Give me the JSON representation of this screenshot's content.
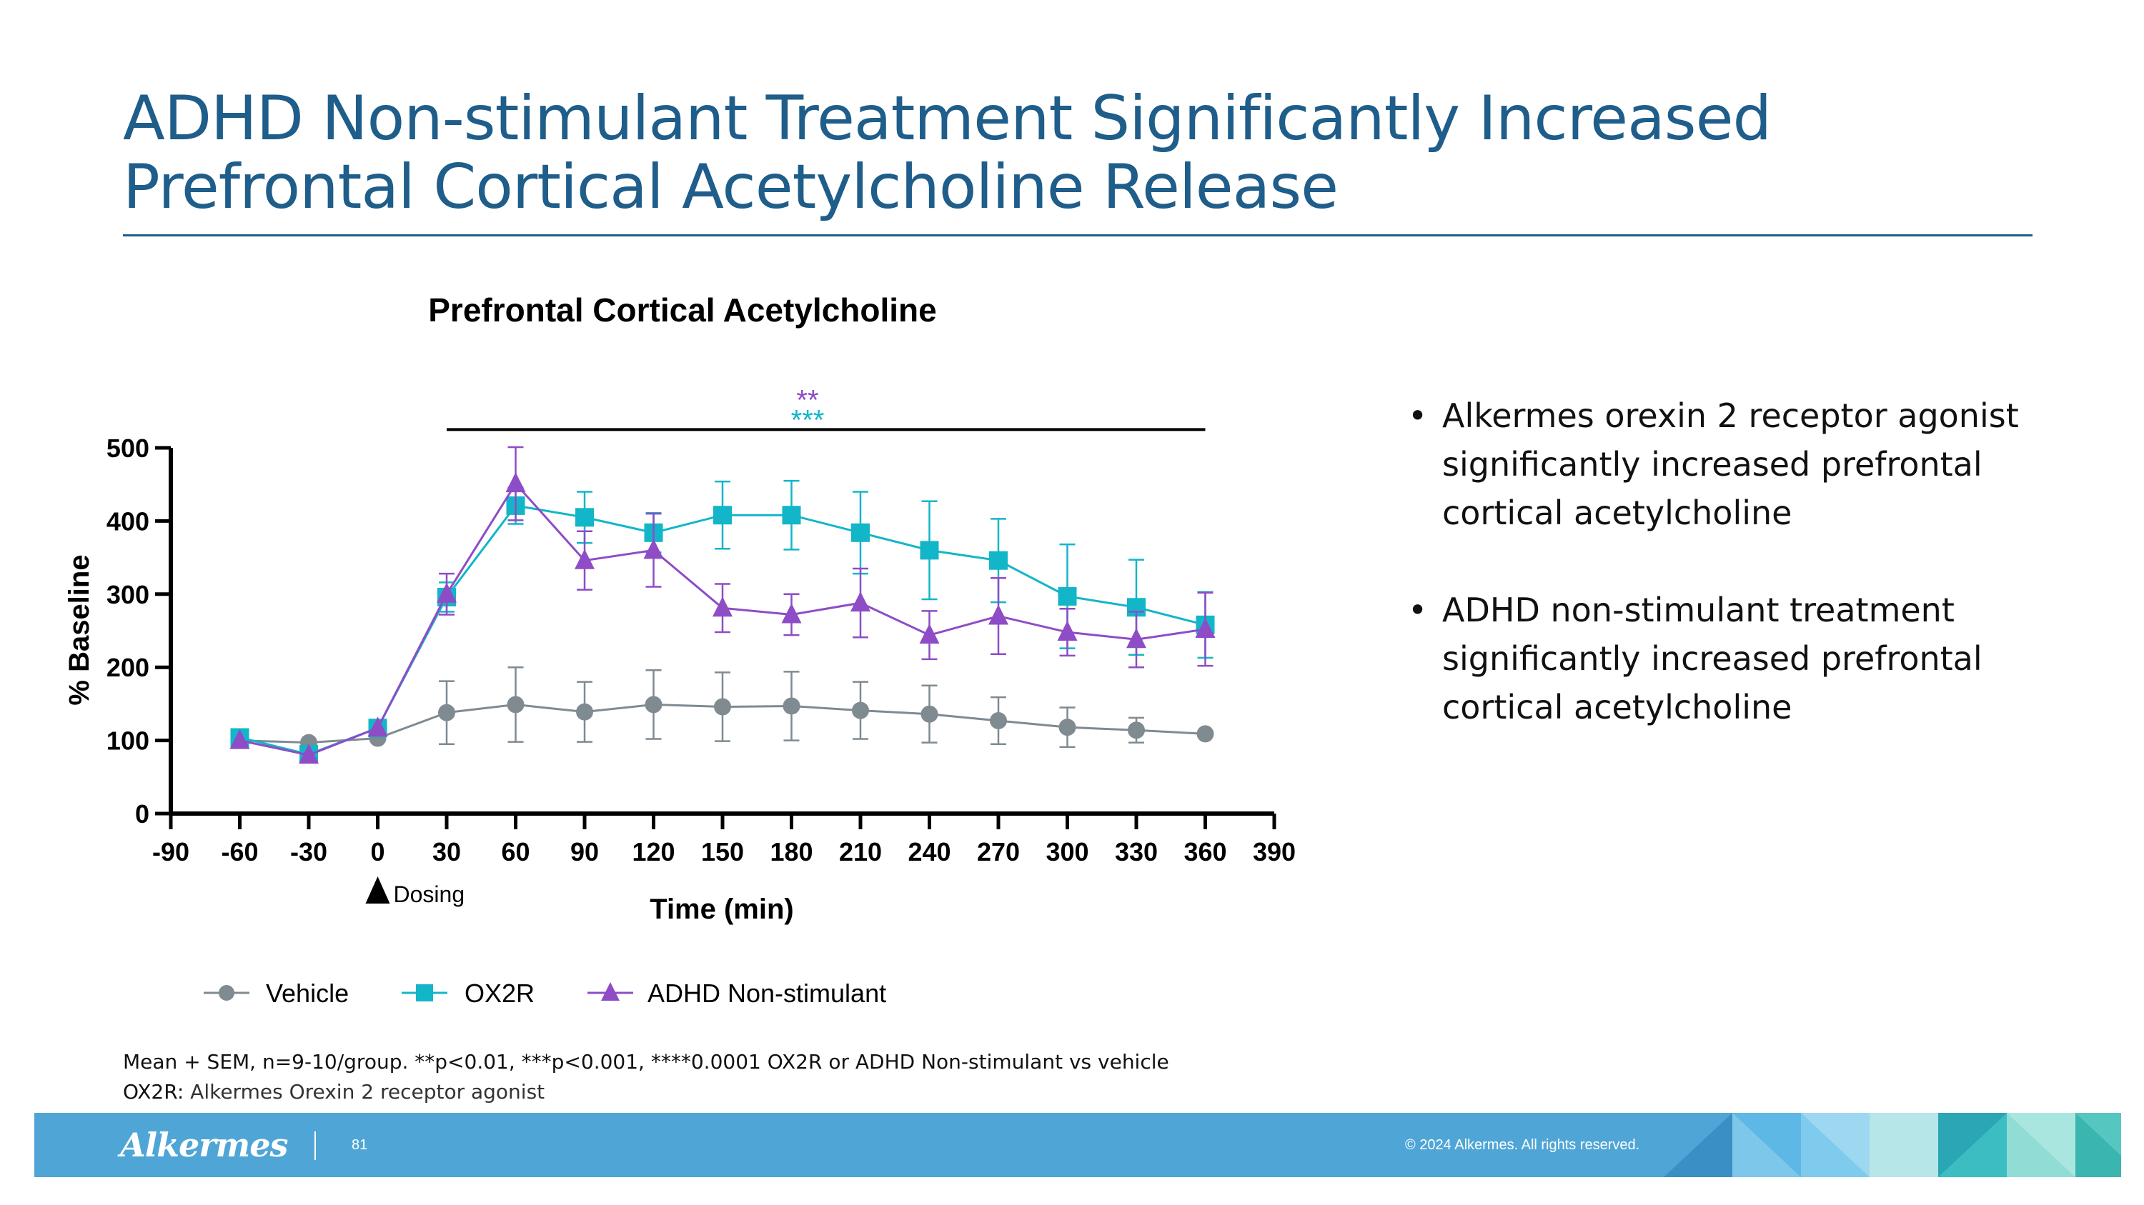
{
  "slide": {
    "title_line1": "ADHD Non-stimulant Treatment Significantly Increased",
    "title_line2": "Prefrontal Cortical Acetylcholine Release"
  },
  "bullets": [
    "Alkermes orexin 2 receptor agonist significantly increased prefrontal cortical acetylcholine",
    "ADHD non-stimulant treatment significantly increased prefrontal cortical acetylcholine"
  ],
  "footnote": {
    "line1": "Mean + SEM, n=9-10/group. **p<0.01, ***p<0.001, ****0.0001 OX2R or ADHD Non-stimulant vs vehicle",
    "line2_label": "OX2R:",
    "line2_text": " Alkermes Orexin 2 receptor agonist"
  },
  "footer": {
    "logo_text": "Alkermes",
    "page_number": "81",
    "copyright": "© 2024 Alkermes. All rights reserved."
  },
  "colors": {
    "title": "#1f5d8a",
    "vehicle": "#7f8a91",
    "ox2r": "#12b6c8",
    "adhd": "#8e4cc6",
    "footer": "#4fa6d6"
  },
  "chart_data": {
    "type": "line",
    "title": "Prefrontal Cortical Acetylcholine",
    "xlabel": "Time (min)",
    "ylabel": "% Baseline",
    "xlim": [
      -90,
      390
    ],
    "ylim": [
      0,
      500
    ],
    "xticks": [
      -90,
      -60,
      -30,
      0,
      30,
      60,
      90,
      120,
      150,
      180,
      210,
      240,
      270,
      300,
      330,
      360,
      390
    ],
    "yticks": [
      0,
      100,
      200,
      300,
      400,
      500
    ],
    "dosing_label": "Dosing",
    "dosing_x": 0,
    "significance": {
      "from_x": 30,
      "to_x": 360,
      "y": 525,
      "adhd_marker": "**",
      "ox2r_marker": "***"
    },
    "legend_position": "bottom",
    "series": [
      {
        "name": "Vehicle",
        "marker": "circle",
        "x": [
          -60,
          -30,
          0,
          30,
          60,
          90,
          120,
          150,
          180,
          210,
          240,
          270,
          300,
          330,
          360
        ],
        "values": [
          100,
          97,
          103,
          138,
          149,
          139,
          149,
          146,
          147,
          141,
          136,
          127,
          118,
          114,
          109
        ],
        "sem": [
          0,
          0,
          0,
          43,
          51,
          41,
          47,
          47,
          47,
          39,
          39,
          32,
          27,
          17,
          0
        ]
      },
      {
        "name": "OX2R",
        "marker": "square",
        "x": [
          -60,
          -30,
          0,
          30,
          60,
          90,
          120,
          150,
          180,
          210,
          240,
          270,
          300,
          330,
          360
        ],
        "values": [
          104,
          81,
          117,
          296,
          421,
          405,
          384,
          408,
          408,
          384,
          360,
          346,
          297,
          282,
          258
        ],
        "sem": [
          0,
          0,
          0,
          20,
          25,
          35,
          27,
          46,
          47,
          56,
          67,
          57,
          71,
          65,
          45
        ]
      },
      {
        "name": "ADHD Non-stimulant",
        "marker": "triangle",
        "x": [
          -60,
          -30,
          0,
          30,
          60,
          90,
          120,
          150,
          180,
          210,
          240,
          270,
          300,
          330,
          360
        ],
        "values": [
          100,
          80,
          117,
          300,
          451,
          346,
          360,
          281,
          272,
          288,
          244,
          270,
          248,
          238,
          252
        ],
        "sem": [
          0,
          0,
          0,
          28,
          50,
          40,
          50,
          33,
          28,
          47,
          33,
          52,
          32,
          38,
          50
        ]
      }
    ]
  }
}
